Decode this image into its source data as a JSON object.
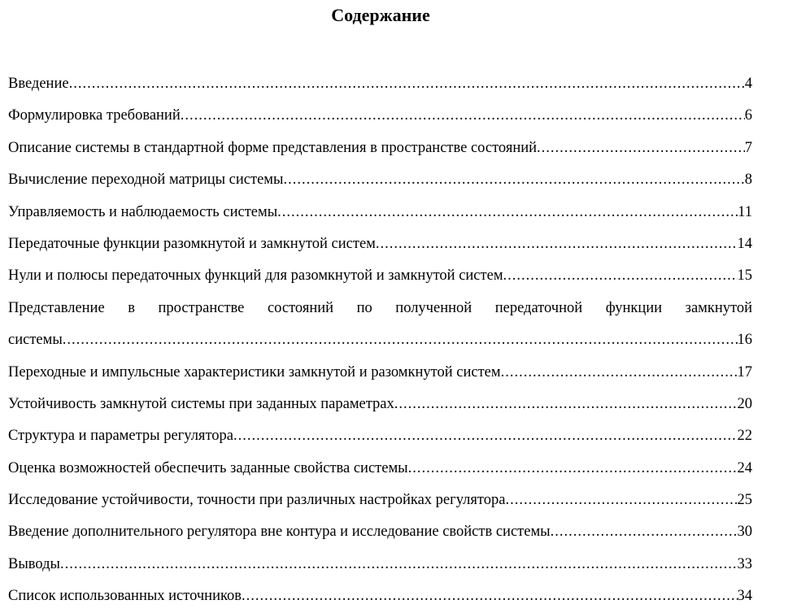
{
  "title": "Содержание",
  "entries": [
    {
      "label": "Введение",
      "page": "4"
    },
    {
      "label": "Формулировка требований",
      "page": "6"
    },
    {
      "label": "Описание системы в стандартной форме представления в пространстве состояний",
      "page": "7"
    },
    {
      "label": "Вычисление переходной матрицы системы",
      "page": "8"
    },
    {
      "label": "Управляемость и наблюдаемость системы",
      "page": "11"
    },
    {
      "label": "Передаточные функции разомкнутой и замкнутой систем",
      "page": "14"
    },
    {
      "label": "Нули и полюсы передаточных функций для разомкнутой и замкнутой систем",
      "page": "15"
    },
    {
      "label_line1": "Представление в пространстве состояний по полученной передаточной функции замкнутой",
      "label": "системы",
      "page": "16"
    },
    {
      "label": "Переходные и импульсные характеристики замкнутой и разомкнутой систем",
      "page": "17"
    },
    {
      "label": "Устойчивость замкнутой системы при заданных параметрах",
      "page": "20"
    },
    {
      "label": "Структура и параметры регулятора",
      "page": "22"
    },
    {
      "label": "Оценка возможностей обеспечить заданные свойства системы",
      "page": "24"
    },
    {
      "label": "Исследование устойчивости, точности при различных настройках регулятора",
      "page": "25"
    },
    {
      "label": "Введение дополнительного регулятора вне контура и исследование свойств системы",
      "page": "30"
    },
    {
      "label": "Выводы",
      "page": "33"
    },
    {
      "label": "Список использованных источников",
      "page": "34"
    }
  ]
}
